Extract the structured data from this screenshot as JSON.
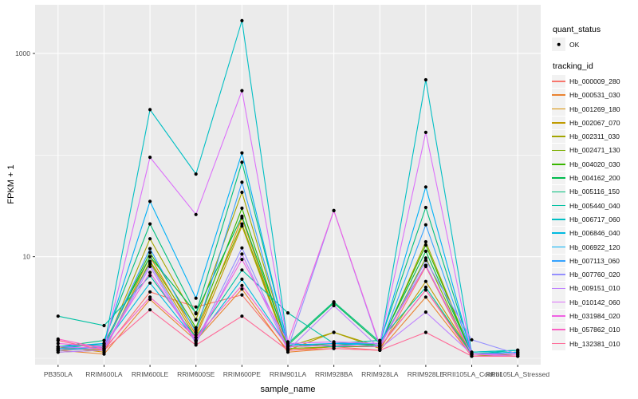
{
  "chart_data": {
    "type": "line",
    "title": "",
    "xlabel": "sample_name",
    "ylabel": "FPKM + 1",
    "categories": [
      "PB350LA",
      "RRIM600LA",
      "RRIM600LE",
      "RRIM600SE",
      "RRIM600PE",
      "RRIM901LA",
      "RRIM928BA",
      "RRIM928LA",
      "RRIM928LE",
      "RRII105LA_Control",
      "RRII105LA_Stressed"
    ],
    "y_axis": {
      "scale": "log10",
      "domain": [
        0.87,
        3000
      ],
      "ticks": [
        {
          "value": 10,
          "label": "10"
        },
        {
          "value": 1000,
          "label": "1000"
        }
      ],
      "minor_gridlines": [
        1,
        100
      ]
    },
    "grid": "on",
    "panel_bg": "#EBEBEB",
    "gridline_color": "#FFFFFF",
    "point_shape": "filled-circle",
    "point_color": "#000000",
    "legend_position": "right",
    "legend": {
      "quant_status": {
        "title": "quant_status",
        "items": [
          {
            "label": "OK",
            "symbol": "point"
          }
        ]
      },
      "tracking_id": {
        "title": "tracking_id"
      }
    },
    "series": [
      {
        "id": "Hb_000009_280",
        "color": "#F8766D",
        "values": [
          1.5,
          1.2,
          4.5,
          3.2,
          4.2,
          1.2,
          1.3,
          1.2,
          8.0,
          1.05,
          1.1
        ]
      },
      {
        "id": "Hb_000531_030",
        "color": "#EA8331",
        "values": [
          1.2,
          1.1,
          3.8,
          1.5,
          4.8,
          1.15,
          1.25,
          1.2,
          4.0,
          1.05,
          1.05
        ]
      },
      {
        "id": "Hb_001269_180",
        "color": "#D89000",
        "values": [
          1.3,
          1.15,
          10.0,
          1.7,
          24.0,
          1.2,
          1.3,
          1.3,
          4.7,
          1.1,
          1.05
        ]
      },
      {
        "id": "Hb_002067_070",
        "color": "#C09B00",
        "values": [
          1.25,
          1.2,
          8.8,
          1.6,
          20.0,
          1.2,
          1.8,
          1.25,
          5.7,
          1.1,
          1.1
        ]
      },
      {
        "id": "Hb_002311_030",
        "color": "#A3A500",
        "values": [
          1.2,
          1.25,
          15.0,
          2.4,
          43.0,
          1.3,
          1.8,
          1.3,
          14.0,
          1.1,
          1.05
        ]
      },
      {
        "id": "Hb_002471_130",
        "color": "#7CAE00",
        "values": [
          1.15,
          1.2,
          9.0,
          1.9,
          21.0,
          1.25,
          1.3,
          1.3,
          9.7,
          1.05,
          1.1
        ]
      },
      {
        "id": "Hb_004020_030",
        "color": "#39B600",
        "values": [
          1.2,
          1.3,
          11.0,
          2.0,
          30.0,
          1.3,
          1.4,
          1.35,
          13.0,
          1.1,
          1.15
        ]
      },
      {
        "id": "Hb_004162_200",
        "color": "#00BB4E",
        "values": [
          1.25,
          1.4,
          10.0,
          2.8,
          25.0,
          1.35,
          3.5,
          1.4,
          11.3,
          1.1,
          1.15
        ]
      },
      {
        "id": "Hb_005116_150",
        "color": "#00BF7D",
        "values": [
          1.3,
          1.5,
          21.0,
          2.75,
          85.0,
          1.4,
          3.6,
          1.45,
          30.5,
          1.15,
          1.2
        ]
      },
      {
        "id": "Hb_005440_040",
        "color": "#00C1A3",
        "values": [
          2.6,
          2.1,
          6.5,
          1.6,
          7.4,
          2.8,
          1.4,
          1.5,
          5.0,
          1.1,
          1.2
        ]
      },
      {
        "id": "Hb_006717_060",
        "color": "#00BFC4",
        "values": [
          1.2,
          1.3,
          280.0,
          65.0,
          2100.0,
          1.4,
          1.3,
          1.35,
          550.0,
          1.15,
          1.2
        ]
      },
      {
        "id": "Hb_006846_040",
        "color": "#00BAE0",
        "values": [
          1.3,
          1.35,
          5.5,
          1.5,
          6.0,
          1.3,
          1.35,
          1.4,
          8.2,
          1.1,
          1.15
        ]
      },
      {
        "id": "Hb_006922_120",
        "color": "#00B0F6",
        "values": [
          1.3,
          1.4,
          35.0,
          3.9,
          105.0,
          1.35,
          1.4,
          1.4,
          48.5,
          1.1,
          1.15
        ]
      },
      {
        "id": "Hb_007113_060",
        "color": "#35A2FF",
        "values": [
          1.25,
          1.3,
          12.0,
          1.8,
          54.0,
          1.3,
          1.35,
          1.3,
          20.6,
          1.1,
          1.1
        ]
      },
      {
        "id": "Hb_007760_020",
        "color": "#9590FF",
        "values": [
          1.2,
          1.25,
          8.5,
          1.45,
          12.2,
          1.25,
          28.4,
          1.3,
          9.2,
          1.52,
          1.1
        ]
      },
      {
        "id": "Hb_009151_010",
        "color": "#BF80FF",
        "values": [
          1.15,
          1.2,
          8.0,
          1.4,
          10.6,
          1.2,
          3.3,
          1.25,
          2.85,
          1.1,
          1.05
        ]
      },
      {
        "id": "Hb_010142_060",
        "color": "#DC71FA",
        "values": [
          1.3,
          1.25,
          95.0,
          26.0,
          430.0,
          1.4,
          1.45,
          1.4,
          167.0,
          1.1,
          1.1
        ]
      },
      {
        "id": "Hb_031984_020",
        "color": "#F062E3",
        "values": [
          1.4,
          1.3,
          7.0,
          1.5,
          9.4,
          1.45,
          28.4,
          1.35,
          8.2,
          1.1,
          1.1
        ]
      },
      {
        "id": "Hb_057862_010",
        "color": "#FA62C4",
        "values": [
          1.55,
          1.25,
          4.0,
          1.6,
          5.2,
          1.3,
          1.35,
          1.3,
          4.7,
          1.05,
          1.05
        ]
      },
      {
        "id": "Hb_132381_010",
        "color": "#FF6A98",
        "values": [
          1.5,
          1.2,
          3.0,
          1.35,
          2.6,
          1.2,
          1.25,
          1.2,
          1.8,
          1.05,
          1.05
        ]
      }
    ]
  }
}
